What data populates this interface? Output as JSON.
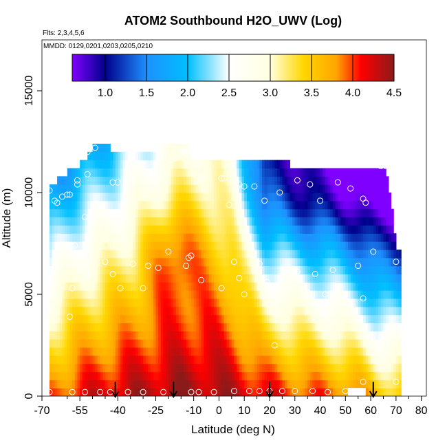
{
  "chart_data": {
    "type": "heatmap",
    "title": "ATOM2 Southbound H2O_UWV (Log)",
    "notes": [
      "Flts: 2,3,4,5,6",
      "MMDD: 0129,0201,0203,0205,0210"
    ],
    "xlabel": "Latitude (deg N)",
    "ylabel": "Altitude (m)",
    "xlim": [
      -70,
      82
    ],
    "ylim": [
      0,
      17500
    ],
    "x_ticks": [
      -70,
      -55,
      -40,
      -25,
      -10,
      0,
      10,
      20,
      30,
      40,
      50,
      60,
      70,
      80
    ],
    "x_tick_labels": [
      "-70",
      "-55",
      "-40",
      "-25",
      "-10",
      "0",
      "10",
      "20",
      "30",
      "40",
      "50",
      "60",
      "70",
      "80"
    ],
    "x_minor_ticks": [
      -60,
      -50,
      -45,
      -35,
      -30,
      -20,
      -15,
      -5,
      5,
      15,
      25,
      35,
      45,
      55,
      65,
      75
    ],
    "y_ticks": [
      0,
      5000,
      10000,
      15000
    ],
    "y_tick_labels": [
      "0",
      "5000",
      "10000",
      "15000"
    ],
    "colorbar": {
      "range": [
        0.6,
        4.5
      ],
      "ticks": [
        1.0,
        1.5,
        2.0,
        2.5,
        3.0,
        3.5,
        4.0,
        4.5
      ],
      "tick_labels": [
        "1.0",
        "1.5",
        "2.0",
        "2.5",
        "3.0",
        "3.5",
        "4.0",
        "4.5"
      ],
      "separators": [
        1.0,
        1.5,
        2.0,
        2.5,
        3.0,
        3.5,
        4.0
      ],
      "colors": [
        "#7f00ff",
        "#00008b",
        "#1e90ff",
        "#00bfff",
        "#ffffff",
        "#ffffe0",
        "#ffd700",
        "#ffa500",
        "#ff0000",
        "#8b1a1a"
      ],
      "color_stops": [
        0.6,
        1.0,
        1.5,
        2.0,
        2.5,
        3.0,
        3.4,
        3.8,
        4.1,
        4.5
      ]
    },
    "grid": {
      "lat_min": -67,
      "lat_max": 72,
      "lat_step": 1,
      "alt_step": 400,
      "alt_max": 12400
    },
    "profile_altitudes": [
      {
        "lat": -67,
        "top": 10400
      },
      {
        "lat": -64,
        "top": 10400
      },
      {
        "lat": -60,
        "top": 10800
      },
      {
        "lat": -55,
        "top": 11200
      },
      {
        "lat": -50,
        "top": 12000
      },
      {
        "lat": -45,
        "top": 12200
      },
      {
        "lat": -40,
        "top": 11800
      },
      {
        "lat": -35,
        "top": 11800
      },
      {
        "lat": -30,
        "top": 12000
      },
      {
        "lat": -25,
        "top": 12000
      },
      {
        "lat": -20,
        "top": 12400
      },
      {
        "lat": -15,
        "top": 12400
      },
      {
        "lat": -12,
        "top": 12400
      },
      {
        "lat": -11,
        "top": 11600
      },
      {
        "lat": 0,
        "top": 11600
      },
      {
        "lat": 10,
        "top": 11600
      },
      {
        "lat": 20,
        "top": 11600
      },
      {
        "lat": 27,
        "top": 11600
      },
      {
        "lat": 28,
        "top": 11200
      },
      {
        "lat": 40,
        "top": 11200
      },
      {
        "lat": 50,
        "top": 11200
      },
      {
        "lat": 60,
        "top": 11200
      },
      {
        "lat": 66,
        "top": 11200
      },
      {
        "lat": 67,
        "top": 10000
      },
      {
        "lat": 69,
        "top": 8800
      },
      {
        "lat": 70,
        "top": 7200
      },
      {
        "lat": 72,
        "top": 7200
      }
    ],
    "field_anchors": {
      "lats": [
        -67,
        -55,
        -40,
        -25,
        -15,
        -5,
        0,
        5,
        10,
        18,
        25,
        35,
        45,
        55,
        62,
        70
      ],
      "sfc": [
        3.9,
        4.15,
        4.3,
        4.4,
        4.45,
        4.45,
        4.4,
        4.35,
        4.3,
        4.2,
        4.1,
        4.0,
        3.95,
        3.85,
        3.6,
        3.5
      ],
      "scale_height": [
        5200,
        5600,
        6400,
        7600,
        8500,
        9200,
        9000,
        8200,
        6000,
        4200,
        4400,
        4200,
        4000,
        3600,
        3600,
        3600
      ]
    },
    "observations": [
      {
        "lat": -67,
        "alt": 10100
      },
      {
        "lat": -65,
        "alt": 9600
      },
      {
        "lat": -64,
        "alt": 9500
      },
      {
        "lat": -62,
        "alt": 9800
      },
      {
        "lat": -60,
        "alt": 9900
      },
      {
        "lat": -59,
        "alt": 9900
      },
      {
        "lat": -56,
        "alt": 10600
      },
      {
        "lat": -56,
        "alt": 10400
      },
      {
        "lat": -54,
        "alt": 11800
      },
      {
        "lat": -52,
        "alt": 12000
      },
      {
        "lat": -49,
        "alt": 12200
      },
      {
        "lat": -52,
        "alt": 10900
      },
      {
        "lat": -53,
        "alt": 8800
      },
      {
        "lat": -51,
        "alt": 8800
      },
      {
        "lat": -49,
        "alt": 8900
      },
      {
        "lat": -47,
        "alt": 8900
      },
      {
        "lat": -45,
        "alt": 7700
      },
      {
        "lat": -57,
        "alt": 7400
      },
      {
        "lat": -42,
        "alt": 10500
      },
      {
        "lat": -40,
        "alt": 10500
      },
      {
        "lat": -34,
        "alt": 10600
      },
      {
        "lat": -29,
        "alt": 9900
      },
      {
        "lat": -19,
        "alt": 11600
      },
      {
        "lat": -17,
        "alt": 11700
      },
      {
        "lat": -15,
        "alt": 12000
      },
      {
        "lat": -14,
        "alt": 12000
      },
      {
        "lat": -13,
        "alt": 11900
      },
      {
        "lat": -7,
        "alt": 10700
      },
      {
        "lat": 1,
        "alt": 10700
      },
      {
        "lat": 2,
        "alt": 10700
      },
      {
        "lat": 4,
        "alt": 9400
      },
      {
        "lat": 8,
        "alt": 10400
      },
      {
        "lat": 10,
        "alt": 10300
      },
      {
        "lat": 14,
        "alt": 10300
      },
      {
        "lat": 18,
        "alt": 9600
      },
      {
        "lat": 24,
        "alt": 10000
      },
      {
        "lat": 31,
        "alt": 10600
      },
      {
        "lat": 36,
        "alt": 10400
      },
      {
        "lat": 40,
        "alt": 9600
      },
      {
        "lat": 47,
        "alt": 10500
      },
      {
        "lat": 52,
        "alt": 10200
      },
      {
        "lat": 57,
        "alt": 9700
      },
      {
        "lat": 58,
        "alt": 9500
      },
      {
        "lat": 64,
        "alt": 11300
      },
      {
        "lat": 66,
        "alt": 11300
      },
      {
        "lat": 61,
        "alt": 7100
      },
      {
        "lat": 70,
        "alt": 6600
      },
      {
        "lat": -58,
        "alt": 5300
      },
      {
        "lat": -55,
        "alt": 6200
      },
      {
        "lat": -52,
        "alt": 6000
      },
      {
        "lat": -45,
        "alt": 6600
      },
      {
        "lat": -42,
        "alt": 6000
      },
      {
        "lat": -39,
        "alt": 5300
      },
      {
        "lat": -34,
        "alt": 6500
      },
      {
        "lat": -30,
        "alt": 5300
      },
      {
        "lat": -28,
        "alt": 6400
      },
      {
        "lat": -24,
        "alt": 6300
      },
      {
        "lat": -20,
        "alt": 7100
      },
      {
        "lat": -13,
        "alt": 6400
      },
      {
        "lat": -12,
        "alt": 6800
      },
      {
        "lat": -11,
        "alt": 6900
      },
      {
        "lat": -7,
        "alt": 5700
      },
      {
        "lat": 1,
        "alt": 5300
      },
      {
        "lat": 6,
        "alt": 6600
      },
      {
        "lat": 8,
        "alt": 5800
      },
      {
        "lat": 10,
        "alt": 5000
      },
      {
        "lat": 14,
        "alt": 6200
      },
      {
        "lat": 16,
        "alt": 6500
      },
      {
        "lat": 17,
        "alt": 4900
      },
      {
        "lat": 19,
        "alt": 5600
      },
      {
        "lat": 22,
        "alt": 4500
      },
      {
        "lat": 22,
        "alt": 4100
      },
      {
        "lat": 27,
        "alt": 5700
      },
      {
        "lat": 29,
        "alt": 5300
      },
      {
        "lat": 31,
        "alt": 6100
      },
      {
        "lat": 35,
        "alt": 5100
      },
      {
        "lat": 38,
        "alt": 6000
      },
      {
        "lat": 42,
        "alt": 5000
      },
      {
        "lat": 45,
        "alt": 6200
      },
      {
        "lat": 55,
        "alt": 6400
      },
      {
        "lat": 57,
        "alt": 4800
      },
      {
        "lat": 49,
        "alt": 5000
      },
      {
        "lat": -59,
        "alt": 3900
      },
      {
        "lat": 22,
        "alt": 2500
      },
      {
        "lat": 70,
        "alt": 700
      },
      {
        "lat": 57,
        "alt": 700
      },
      {
        "lat": -67,
        "alt": 200
      },
      {
        "lat": -58,
        "alt": 200
      },
      {
        "lat": -53,
        "alt": 200
      },
      {
        "lat": -47,
        "alt": 200
      },
      {
        "lat": -43,
        "alt": 200
      },
      {
        "lat": -36,
        "alt": 200
      },
      {
        "lat": -30,
        "alt": 200
      },
      {
        "lat": -22,
        "alt": 200
      },
      {
        "lat": -11,
        "alt": 200
      },
      {
        "lat": -8,
        "alt": 200
      },
      {
        "lat": -2,
        "alt": 200
      },
      {
        "lat": 6,
        "alt": 250
      },
      {
        "lat": 12,
        "alt": 250
      },
      {
        "lat": 16,
        "alt": 250
      },
      {
        "lat": 20,
        "alt": 250
      },
      {
        "lat": 25,
        "alt": 250
      },
      {
        "lat": 30,
        "alt": 250
      },
      {
        "lat": 37,
        "alt": 250
      },
      {
        "lat": 43,
        "alt": 200
      },
      {
        "lat": 50,
        "alt": 250
      }
    ],
    "missing_blocks": [
      {
        "lat_from": 51,
        "lat_to": 58,
        "alt_from": 0,
        "alt_to": 400
      }
    ],
    "arrows_at_lat": [
      -41,
      -18,
      20,
      61
    ]
  }
}
